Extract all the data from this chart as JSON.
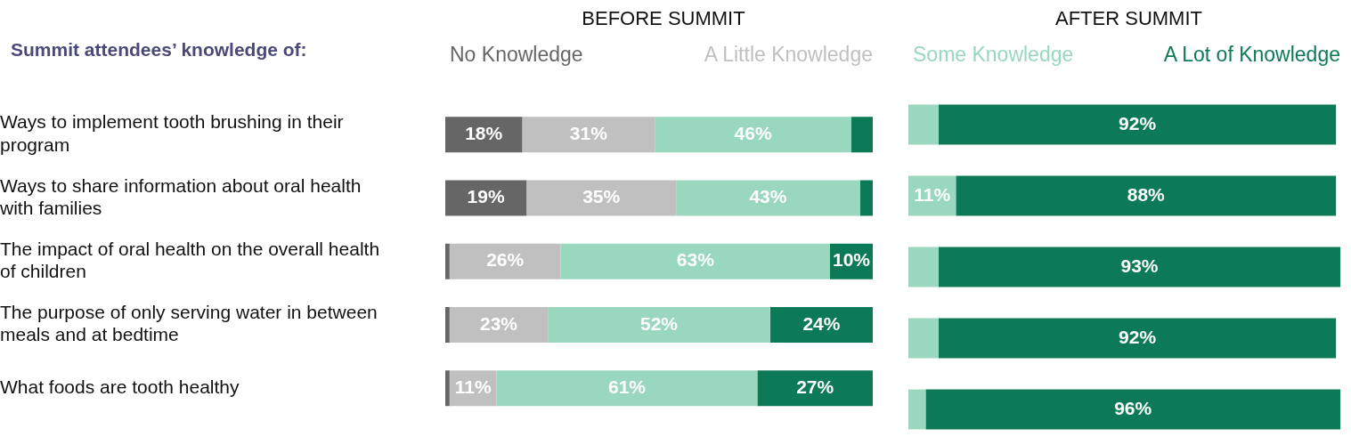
{
  "chart_data": [
    {
      "type": "bar",
      "orientation": "horizontal",
      "stacked": true,
      "title": "BEFORE SUMMIT",
      "ylabel": "Summit attendees’ knowledge of:",
      "legend": "top",
      "tick_labels": "y",
      "xlim": [
        0,
        100
      ],
      "categories": [
        "Ways to implement tooth brushing in their program",
        "Ways to share information about oral health with families",
        "The impact of oral health on the overall health of children",
        "The purpose of only serving water in between meals and at bedtime",
        "What foods are tooth healthy"
      ],
      "series": [
        {
          "name": "No Knowledge",
          "color": "#666666",
          "values": [
            18,
            19,
            1,
            1,
            1
          ],
          "value_labels": [
            "18%",
            "19%",
            null,
            null,
            null
          ]
        },
        {
          "name": "A Little Knowledge",
          "color": "#c0c0c0",
          "values": [
            31,
            35,
            26,
            23,
            11
          ],
          "value_labels": [
            "31%",
            "35%",
            "26%",
            "23%",
            "11%"
          ]
        },
        {
          "color": "#99d8bf",
          "values": [
            46,
            43,
            63,
            52,
            61
          ],
          "value_labels": [
            "46%",
            "43%",
            "63%",
            "52%",
            "61%"
          ]
        },
        {
          "color": "#0c7a56",
          "values": [
            5,
            3,
            10,
            24,
            27
          ],
          "value_labels": [
            null,
            null,
            "10%",
            "24%",
            "27%"
          ]
        }
      ]
    },
    {
      "type": "bar",
      "orientation": "horizontal",
      "stacked": true,
      "title": "AFTER SUMMIT",
      "legend": "top",
      "tick_labels": false,
      "xlim": [
        0,
        100
      ],
      "categories": [
        null,
        null,
        null,
        null,
        null
      ],
      "series": [
        {
          "name": "Some Knowledge",
          "color": "#99d8bf",
          "values": [
            7,
            11,
            7,
            7,
            4
          ],
          "value_labels": [
            null,
            "11%",
            null,
            null,
            null
          ]
        },
        {
          "name": "A Lot of Knowledge",
          "color": "#0c7a56",
          "values": [
            92,
            88,
            93,
            92,
            96
          ],
          "value_labels": [
            "92%",
            "88%",
            "93%",
            "92%",
            "96%"
          ]
        }
      ]
    }
  ]
}
